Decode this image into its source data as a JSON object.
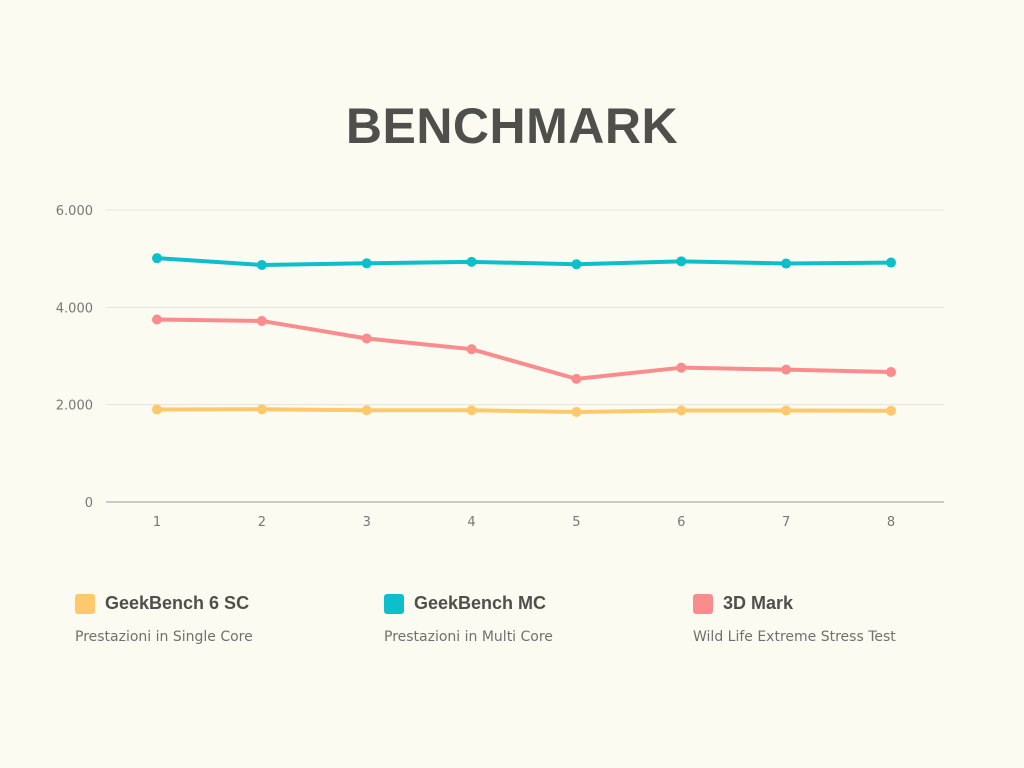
{
  "chart_data": {
    "type": "line",
    "title": "BENCHMARK",
    "x": [
      "1",
      "2",
      "3",
      "4",
      "5",
      "6",
      "7",
      "8"
    ],
    "ylim": [
      0,
      6000
    ],
    "yticks": [
      0,
      2000,
      4000,
      6000
    ],
    "ytick_labels": [
      "0",
      "2.000",
      "4.000",
      "6.000"
    ],
    "grid": true,
    "legend_position": "bottom",
    "series": [
      {
        "name": "GeekBench 6 SC",
        "description": "Prestazioni in Single Core",
        "color": "#fdc96c",
        "values": [
          1900,
          1905,
          1885,
          1885,
          1850,
          1880,
          1880,
          1875
        ]
      },
      {
        "name": "GeekBench MC",
        "description": "Prestazioni in Multi Core",
        "color": "#0dbfca",
        "values": [
          5010,
          4870,
          4905,
          4935,
          4885,
          4945,
          4900,
          4920
        ]
      },
      {
        "name": "3D Mark",
        "description": "Wild Life Extreme Stress Test",
        "color": "#fb8c8d",
        "values": [
          3750,
          3720,
          3360,
          3140,
          2530,
          2760,
          2720,
          2670
        ]
      }
    ]
  },
  "colors": {
    "background": "#fbfbf1",
    "title": "#4f4f4c",
    "grid": "#e4e4dc",
    "axis": "#9a9a9a"
  }
}
